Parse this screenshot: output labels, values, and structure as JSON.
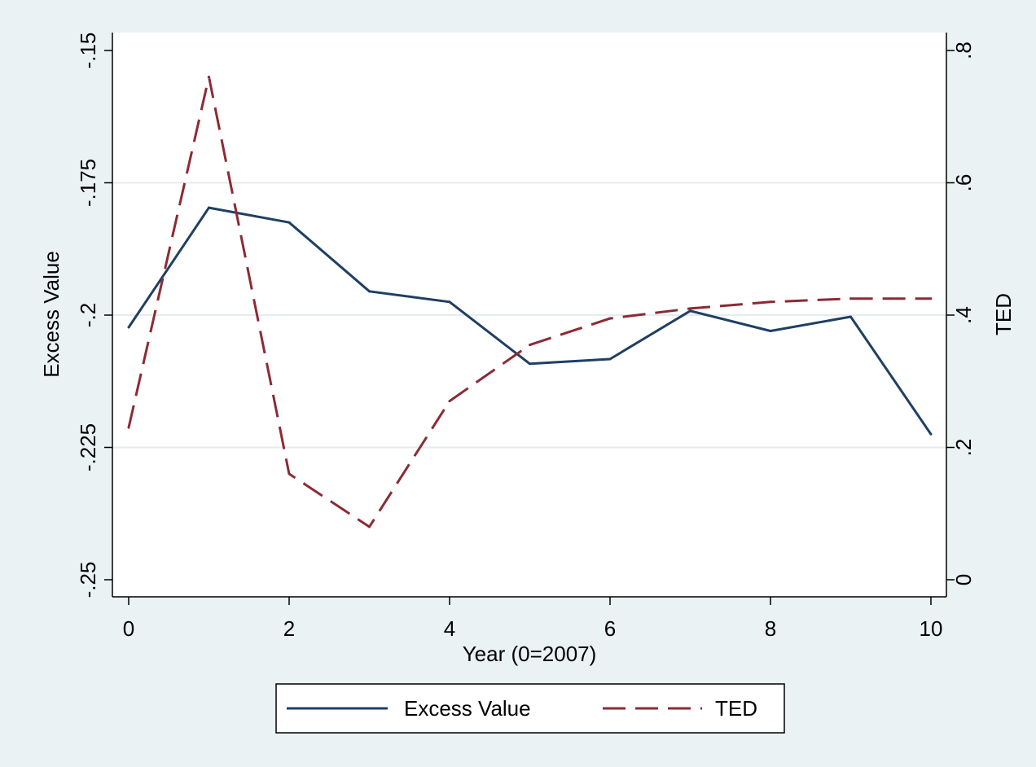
{
  "chart_data": {
    "type": "line",
    "title": "",
    "xlabel": "Year (0=2007)",
    "ylabel_left": "Excess Value",
    "ylabel_right": "TED",
    "x": [
      0,
      1,
      2,
      3,
      4,
      5,
      6,
      7,
      8,
      9,
      10
    ],
    "xlim": [
      0,
      10
    ],
    "x_ticks": [
      0,
      2,
      4,
      6,
      8,
      10
    ],
    "x_tick_labels": [
      "0",
      "2",
      "4",
      "6",
      "8",
      "10"
    ],
    "ylim_left": [
      -0.25,
      -0.15
    ],
    "y_ticks_left": [
      -0.25,
      -0.225,
      -0.2,
      -0.175,
      -0.15
    ],
    "y_tick_labels_left": [
      "-.25",
      "-.225",
      "-.2",
      "-.175",
      "-.15"
    ],
    "ylim_right": [
      0,
      0.8
    ],
    "y_ticks_right": [
      0,
      0.2,
      0.4,
      0.6,
      0.8
    ],
    "y_tick_labels_right": [
      "0",
      ".2",
      ".4",
      ".6",
      ".8"
    ],
    "grid": "horizontal, at left-axis ticks",
    "legend_position": "bottom-center",
    "series": [
      {
        "name": "Excess Value",
        "axis": "left",
        "style": "solid",
        "color": "#1f3f64",
        "values": [
          -0.2023,
          -0.1797,
          -0.1825,
          -0.1955,
          -0.1975,
          -0.2092,
          -0.2083,
          -0.1992,
          -0.203,
          -0.2003,
          -0.2225
        ]
      },
      {
        "name": "TED",
        "axis": "right",
        "style": "dashed",
        "color": "#8b2b35",
        "values": [
          0.23,
          0.76,
          0.16,
          0.08,
          0.27,
          0.355,
          0.395,
          0.41,
          0.42,
          0.425,
          0.425
        ]
      }
    ]
  },
  "colors": {
    "page_background": "#eaf2f3",
    "plot_background": "#ffffff",
    "gridline": "#e4ecee"
  }
}
